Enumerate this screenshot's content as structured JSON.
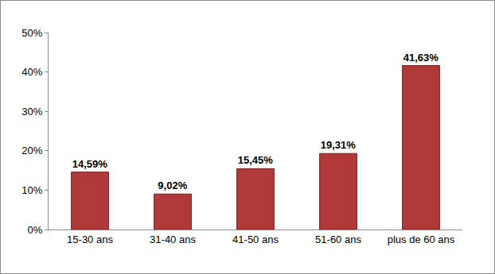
{
  "chart_data": {
    "type": "bar",
    "categories": [
      "15-30 ans",
      "31-40 ans",
      "41-50 ans",
      "51-60 ans",
      "plus de 60 ans"
    ],
    "values": [
      14.59,
      9.02,
      15.45,
      19.31,
      41.63
    ],
    "value_labels": [
      "14,59%",
      "9,02%",
      "15,45%",
      "19,31%",
      "41,63%"
    ],
    "color": "#b03a3a",
    "ylim": [
      0,
      50
    ],
    "yticks": [
      {
        "value": 0,
        "label": "0%"
      },
      {
        "value": 10,
        "label": "10%"
      },
      {
        "value": 20,
        "label": "20%"
      },
      {
        "value": 30,
        "label": "30%"
      },
      {
        "value": 40,
        "label": "40%"
      },
      {
        "value": 50,
        "label": "50%"
      }
    ],
    "grid": false,
    "data_labels": true
  }
}
